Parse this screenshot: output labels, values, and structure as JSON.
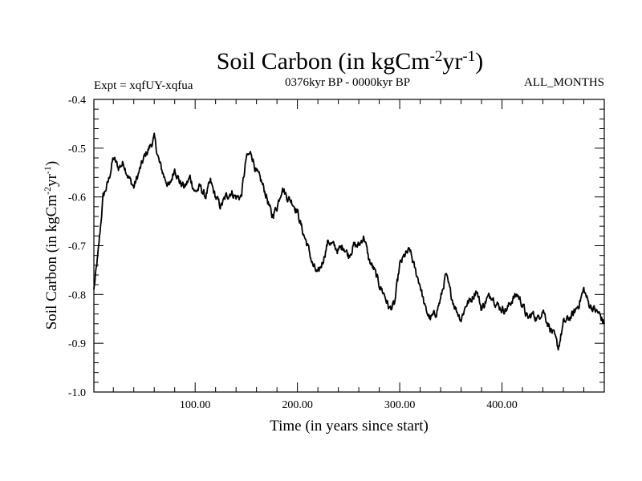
{
  "chart_data": {
    "type": "line",
    "title": {
      "main": "Soil Carbon (in kgCm",
      "sup1": "-2",
      "mid": "yr",
      "sup2": "-1",
      "end": ")"
    },
    "subtitle_left": "Expt = xqfUY-xqfua",
    "subtitle_center": "0376kyr BP - 0000kyr BP",
    "subtitle_right": "ALL_MONTHS",
    "xlabel": "Time (in years since start)",
    "ylabel": {
      "main": "Soil Carbon (in kgCm",
      "sup1": "-2",
      "mid": "yr",
      "sup2": "-1",
      "end": ")"
    },
    "xlim": [
      1,
      500
    ],
    "ylim": [
      -1.0,
      -0.4
    ],
    "xticks": [
      {
        "value": 100,
        "label": "100.00"
      },
      {
        "value": 200,
        "label": "200.00"
      },
      {
        "value": 300,
        "label": "300.00"
      },
      {
        "value": 400,
        "label": "400.00"
      }
    ],
    "yticks": [
      {
        "value": -0.4,
        "label": "-0.4"
      },
      {
        "value": -0.5,
        "label": "-0.5"
      },
      {
        "value": -0.6,
        "label": "-0.6"
      },
      {
        "value": -0.7,
        "label": "-0.7"
      },
      {
        "value": -0.8,
        "label": "-0.8"
      },
      {
        "value": -0.9,
        "label": "-0.9"
      },
      {
        "value": -1.0,
        "label": "-1.0"
      }
    ],
    "series": [
      {
        "name": "Soil Carbon",
        "color": "#000000",
        "x": [
          1,
          5,
          10,
          15,
          20,
          25,
          30,
          35,
          40,
          45,
          50,
          55,
          60,
          65,
          70,
          75,
          80,
          85,
          90,
          95,
          100,
          105,
          110,
          115,
          120,
          125,
          130,
          135,
          140,
          145,
          150,
          155,
          160,
          165,
          170,
          175,
          180,
          185,
          190,
          195,
          200,
          205,
          210,
          215,
          220,
          225,
          230,
          235,
          240,
          245,
          250,
          255,
          260,
          265,
          270,
          275,
          280,
          285,
          290,
          295,
          300,
          305,
          310,
          315,
          320,
          325,
          330,
          335,
          340,
          345,
          350,
          355,
          360,
          365,
          370,
          375,
          380,
          385,
          390,
          395,
          400,
          405,
          410,
          415,
          420,
          425,
          430,
          435,
          440,
          445,
          450,
          455,
          460,
          465,
          470,
          475,
          480,
          485,
          490,
          495,
          500
        ],
        "y": [
          -0.79,
          -0.72,
          -0.6,
          -0.57,
          -0.52,
          -0.54,
          -0.53,
          -0.56,
          -0.58,
          -0.55,
          -0.52,
          -0.5,
          -0.48,
          -0.53,
          -0.56,
          -0.58,
          -0.54,
          -0.57,
          -0.58,
          -0.56,
          -0.59,
          -0.58,
          -0.6,
          -0.57,
          -0.6,
          -0.62,
          -0.6,
          -0.59,
          -0.6,
          -0.6,
          -0.52,
          -0.51,
          -0.55,
          -0.57,
          -0.6,
          -0.64,
          -0.62,
          -0.58,
          -0.6,
          -0.61,
          -0.63,
          -0.67,
          -0.7,
          -0.74,
          -0.76,
          -0.73,
          -0.69,
          -0.7,
          -0.71,
          -0.7,
          -0.72,
          -0.7,
          -0.7,
          -0.68,
          -0.73,
          -0.75,
          -0.78,
          -0.8,
          -0.83,
          -0.82,
          -0.74,
          -0.72,
          -0.71,
          -0.75,
          -0.78,
          -0.83,
          -0.85,
          -0.84,
          -0.81,
          -0.76,
          -0.8,
          -0.83,
          -0.85,
          -0.82,
          -0.81,
          -0.79,
          -0.83,
          -0.81,
          -0.8,
          -0.82,
          -0.83,
          -0.83,
          -0.81,
          -0.8,
          -0.82,
          -0.85,
          -0.84,
          -0.85,
          -0.83,
          -0.86,
          -0.88,
          -0.91,
          -0.86,
          -0.85,
          -0.84,
          -0.82,
          -0.79,
          -0.82,
          -0.83,
          -0.84,
          -0.86
        ]
      }
    ]
  }
}
